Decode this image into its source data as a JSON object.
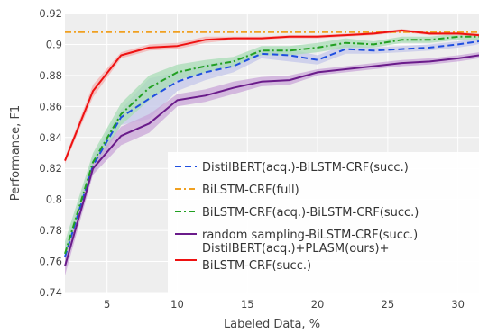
{
  "chart_data": {
    "type": "line",
    "xlabel": "Labeled Data, %",
    "ylabel": "Performance, F1",
    "xlim": [
      2,
      31.5
    ],
    "ylim": [
      0.74,
      0.92
    ],
    "xticks": [
      5,
      10,
      15,
      20,
      25,
      30
    ],
    "yticks": [
      0.74,
      0.76,
      0.78,
      0.8,
      0.82,
      0.84,
      0.86,
      0.88,
      0.9,
      0.92
    ],
    "grid": true,
    "legend_position": "bottom-right",
    "series": [
      {
        "name": "DistilBERT(acq.)-BiLSTM-CRF(succ.)",
        "color": "#1f4fe0",
        "dash": "dashed",
        "band_color": "#c4c7ea",
        "x": [
          2,
          4,
          6,
          8,
          10,
          12,
          14,
          16,
          18,
          20,
          22,
          24,
          26,
          28,
          30,
          31.5
        ],
        "y": [
          0.763,
          0.822,
          0.853,
          0.865,
          0.876,
          0.882,
          0.886,
          0.894,
          0.893,
          0.89,
          0.897,
          0.896,
          0.897,
          0.898,
          0.9,
          0.902
        ],
        "band_half": [
          0.006,
          0.006,
          0.005,
          0.013,
          0.006,
          0.005,
          0.004,
          0.003,
          0.004,
          0.003,
          0.003,
          0.002,
          0.002,
          0.002,
          0.002,
          0.002
        ]
      },
      {
        "name": "BiLSTM-CRF(full)",
        "color": "#f0a020",
        "dash": "dashdot",
        "x": [
          2,
          31.5
        ],
        "y": [
          0.908,
          0.908
        ]
      },
      {
        "name": "BiLSTM-CRF(acq.)-BiLSTM-CRF(succ.)",
        "color": "#22a022",
        "dash": "dashdot",
        "band_color": "#a8dcb5",
        "x": [
          2,
          4,
          6,
          8,
          10,
          12,
          14,
          16,
          18,
          20,
          22,
          24,
          26,
          28,
          30,
          31.5
        ],
        "y": [
          0.765,
          0.824,
          0.855,
          0.872,
          0.882,
          0.886,
          0.889,
          0.896,
          0.896,
          0.898,
          0.901,
          0.9,
          0.903,
          0.903,
          0.905,
          0.905
        ],
        "band_half": [
          0.008,
          0.006,
          0.007,
          0.008,
          0.005,
          0.004,
          0.003,
          0.003,
          0.003,
          0.003,
          0.003,
          0.002,
          0.002,
          0.002,
          0.002,
          0.002
        ]
      },
      {
        "name": "random sampling-BiLSTM-CRF(succ.)",
        "color": "#6a1b8a",
        "dash": "solid",
        "band_color": "#c9a6d8",
        "x": [
          2,
          4,
          6,
          8,
          10,
          12,
          14,
          16,
          18,
          20,
          22,
          24,
          26,
          28,
          30,
          31.5
        ],
        "y": [
          0.757,
          0.82,
          0.841,
          0.849,
          0.864,
          0.867,
          0.872,
          0.876,
          0.877,
          0.882,
          0.884,
          0.886,
          0.888,
          0.889,
          0.891,
          0.893
        ],
        "band_half": [
          0.006,
          0.004,
          0.006,
          0.006,
          0.004,
          0.004,
          0.004,
          0.003,
          0.003,
          0.002,
          0.002,
          0.002,
          0.002,
          0.002,
          0.002,
          0.002
        ]
      },
      {
        "name": "DistilBERT(acq.)+PLASM(ours)+ BiLSTM-CRF(succ.)",
        "legend_lines": [
          "DistilBERT(acq.)+PLASM(ours)+",
          "BiLSTM-CRF(succ.)"
        ],
        "color": "#ee1111",
        "dash": "solid",
        "band_color": "#f4b0b0",
        "x": [
          2,
          4,
          6,
          8,
          10,
          12,
          14,
          16,
          18,
          20,
          22,
          24,
          26,
          28,
          30,
          31.5
        ],
        "y": [
          0.825,
          0.87,
          0.893,
          0.898,
          0.899,
          0.903,
          0.904,
          0.904,
          0.905,
          0.905,
          0.906,
          0.907,
          0.909,
          0.907,
          0.907,
          0.906
        ],
        "band_half": [
          0.002,
          0.004,
          0.002,
          0.002,
          0.002,
          0.002,
          0.001,
          0.001,
          0.001,
          0.001,
          0.001,
          0.001,
          0.001,
          0.001,
          0.001,
          0.001
        ]
      }
    ]
  }
}
